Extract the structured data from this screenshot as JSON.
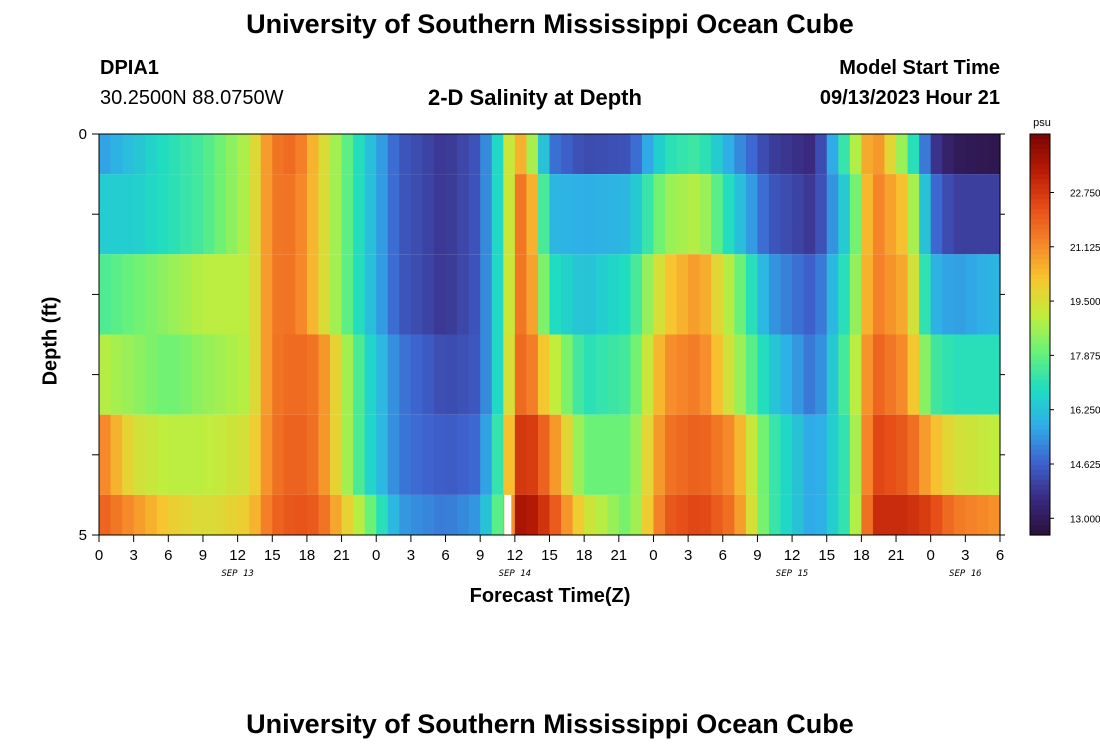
{
  "header": {
    "title": "University of Southern Mississippi Ocean Cube",
    "station_id": "DPIA1",
    "coordinates": "30.2500N  88.0750W",
    "plot_title": "2-D Salinity at Depth",
    "model_start_label": "Model Start Time",
    "model_start_value": "09/13/2023 Hour 21"
  },
  "footer": {
    "title": "University of Southern Mississippi Ocean Cube"
  },
  "colors": {
    "scale": [
      "#2a0f3a",
      "#3a2a80",
      "#3e63cf",
      "#2faee8",
      "#1fdcc2",
      "#66f27a",
      "#bfee3e",
      "#f6c72f",
      "#f6862a",
      "#e54b17",
      "#b81a05",
      "#7a0402"
    ]
  },
  "chart_data": {
    "type": "heatmap",
    "title": "2-D Salinity at Depth",
    "xlabel": "Forecast Time(Z)",
    "ylabel": "Depth (ft)",
    "units": "psu",
    "hours_span": [
      0,
      78
    ],
    "depth_range": [
      0,
      5
    ],
    "y_tick_labels": [
      "0",
      "",
      "",
      "",
      "",
      "5"
    ],
    "x_tick_labels": [
      "0",
      "3",
      "6",
      "9",
      "12",
      "15",
      "18",
      "21",
      "0",
      "3",
      "6",
      "9",
      "12",
      "15",
      "18",
      "21",
      "0",
      "3",
      "6",
      "9",
      "12",
      "15",
      "18",
      "21",
      "0",
      "3",
      "6"
    ],
    "date_labels": [
      {
        "label": "SEP 13",
        "hour": 12
      },
      {
        "label": "SEP 14",
        "hour": 36
      },
      {
        "label": "SEP 15",
        "hour": 60
      },
      {
        "label": "SEP 16",
        "hour": 75
      }
    ],
    "colorbar": {
      "min": 12.5,
      "max": 24.5,
      "tick_labels": [
        "22.750",
        "21.125",
        "19.500",
        "17.875",
        "16.250",
        "14.625",
        "13.000"
      ],
      "tick_values": [
        22.75,
        21.125,
        19.5,
        17.875,
        16.25,
        14.625,
        13.0
      ]
    },
    "current_time_marker_hour": 35,
    "depth_layers": [
      {
        "depth": "0-0.5",
        "key_hours": [
          0,
          6,
          9,
          13,
          15,
          17,
          19,
          23,
          26,
          30,
          33,
          35,
          36,
          37,
          39,
          42,
          46,
          49,
          52,
          55,
          58,
          62,
          65,
          67,
          70,
          72,
          74,
          78
        ],
        "values": [
          15.5,
          17,
          17.5,
          19,
          21.5,
          21.8,
          20,
          16.5,
          14.5,
          13.8,
          14.5,
          17.5,
          21,
          20,
          15,
          14.2,
          14.4,
          17,
          17.4,
          15.5,
          14,
          13.5,
          18,
          21.5,
          18,
          14,
          13,
          12.8
        ]
      },
      {
        "depth": "0.5-1.5",
        "key_hours": [
          0,
          3,
          6,
          9,
          13,
          15,
          17,
          19,
          23,
          26,
          30,
          33,
          35,
          36,
          37,
          39,
          42,
          46,
          49,
          52,
          55,
          58,
          62,
          65,
          67,
          70,
          72,
          74,
          78
        ],
        "values": [
          16.5,
          16.5,
          17,
          17.5,
          19,
          21.5,
          21.6,
          20,
          16.5,
          14.5,
          13.8,
          14.5,
          17.5,
          21,
          22,
          16,
          15.8,
          16,
          18.5,
          19,
          16.5,
          14.5,
          13.8,
          17,
          21.5,
          20,
          15,
          14,
          14
        ]
      },
      {
        "depth": "1.5-2.5",
        "key_hours": [
          0,
          3,
          6,
          9,
          13,
          15,
          17,
          19,
          23,
          26,
          30,
          33,
          35,
          36,
          37,
          39,
          42,
          46,
          49,
          52,
          55,
          58,
          62,
          65,
          67,
          70,
          72,
          74,
          78
        ],
        "values": [
          17.5,
          18,
          18.5,
          19,
          19,
          21.5,
          21.6,
          20,
          16.5,
          14.5,
          13.8,
          14.5,
          17.5,
          21,
          22,
          17,
          16.2,
          17,
          20,
          21,
          18.5,
          15.5,
          14.5,
          17.5,
          21.5,
          20.5,
          16,
          15.5,
          16
        ]
      },
      {
        "depth": "2.5-3.5",
        "key_hours": [
          0,
          3,
          6,
          9,
          13,
          15,
          17,
          19,
          23,
          26,
          30,
          33,
          35,
          36,
          37,
          39,
          42,
          46,
          49,
          52,
          55,
          58,
          62,
          65,
          67,
          70,
          72,
          74,
          78
        ],
        "values": [
          19,
          18.5,
          18,
          18.5,
          19,
          21.5,
          21.8,
          21.5,
          17,
          15,
          14.2,
          14.5,
          17.5,
          21.5,
          22,
          19.5,
          17,
          17.5,
          21,
          21.5,
          19,
          16.5,
          14.8,
          18,
          22,
          21,
          17.5,
          17,
          17
        ]
      },
      {
        "depth": "3.5-4.5",
        "key_hours": [
          0,
          3,
          6,
          9,
          13,
          15,
          17,
          19,
          23,
          26,
          30,
          33,
          35,
          36,
          37,
          39,
          42,
          46,
          49,
          52,
          55,
          58,
          62,
          65,
          67,
          70,
          72,
          74,
          78
        ],
        "values": [
          21.5,
          19.5,
          19,
          19,
          19.5,
          21.5,
          22,
          21.5,
          17,
          15,
          14.5,
          14.8,
          18,
          22.5,
          23,
          21.5,
          18,
          18,
          21.5,
          22,
          21,
          17.5,
          15.5,
          17.5,
          22.5,
          22,
          20.5,
          19.5,
          19
        ]
      },
      {
        "depth": "4.5-5",
        "key_hours": [
          0,
          3,
          6,
          9,
          13,
          15,
          17,
          19,
          23,
          26,
          30,
          33,
          35,
          36,
          37,
          39,
          42,
          46,
          49,
          52,
          55,
          58,
          62,
          65,
          67,
          70,
          72,
          74,
          78
        ],
        "values": [
          22,
          21,
          20,
          19.5,
          20,
          21.8,
          22.2,
          22,
          18.5,
          15.5,
          15,
          15.5,
          18.5,
          23.5,
          23.8,
          22.5,
          19.5,
          18,
          22,
          22.5,
          21.5,
          17.5,
          15.5,
          17.5,
          23,
          23,
          22.5,
          21.5,
          21
        ]
      }
    ]
  }
}
